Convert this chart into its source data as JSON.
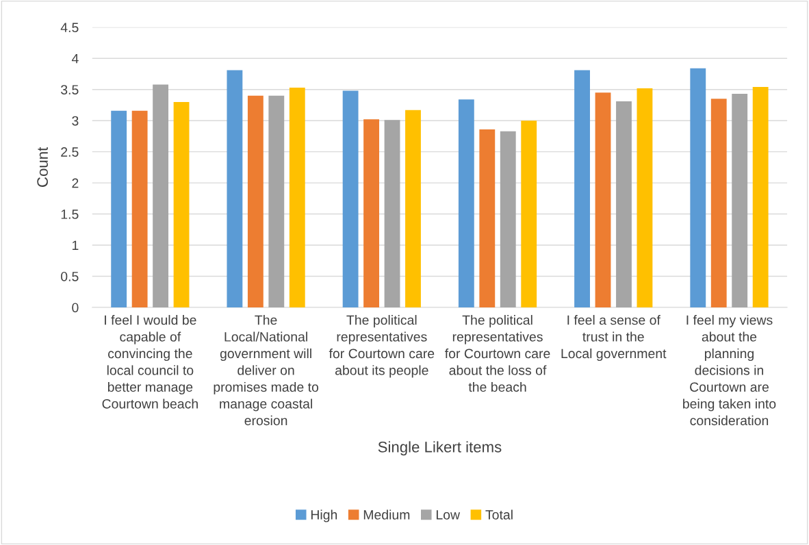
{
  "chart_data": {
    "type": "bar",
    "xlabel": "Single Likert items",
    "ylabel": "Count",
    "categories": [
      "I feel I would be capable of convincing the local council to better manage Courtown beach",
      "The Local/National government will deliver on promises made to manage coastal erosion",
      "The political representatives for Courtown care about its people",
      "The political representatives for Courtown care about the loss of the beach",
      "I feel a sense of trust in the Local government",
      "I feel my views about the planning decisions in Courtown are being taken into consideration"
    ],
    "series": [
      {
        "name": "High",
        "color": "#5b9bd5",
        "values": [
          3.16,
          3.81,
          3.48,
          3.34,
          3.81,
          3.84
        ]
      },
      {
        "name": "Medium",
        "color": "#ed7d31",
        "values": [
          3.16,
          3.4,
          3.02,
          2.86,
          3.45,
          3.35
        ]
      },
      {
        "name": "Low",
        "color": "#a5a5a5",
        "values": [
          3.58,
          3.4,
          3.01,
          2.83,
          3.31,
          3.43
        ]
      },
      {
        "name": "Total",
        "color": "#ffc000",
        "values": [
          3.3,
          3.53,
          3.17,
          3.0,
          3.52,
          3.54
        ]
      }
    ],
    "ylim": [
      0,
      4.5
    ],
    "yticks": [
      0,
      0.5,
      1,
      1.5,
      2,
      2.5,
      3,
      3.5,
      4,
      4.5
    ],
    "grid": "y",
    "legend": "bottom"
  }
}
